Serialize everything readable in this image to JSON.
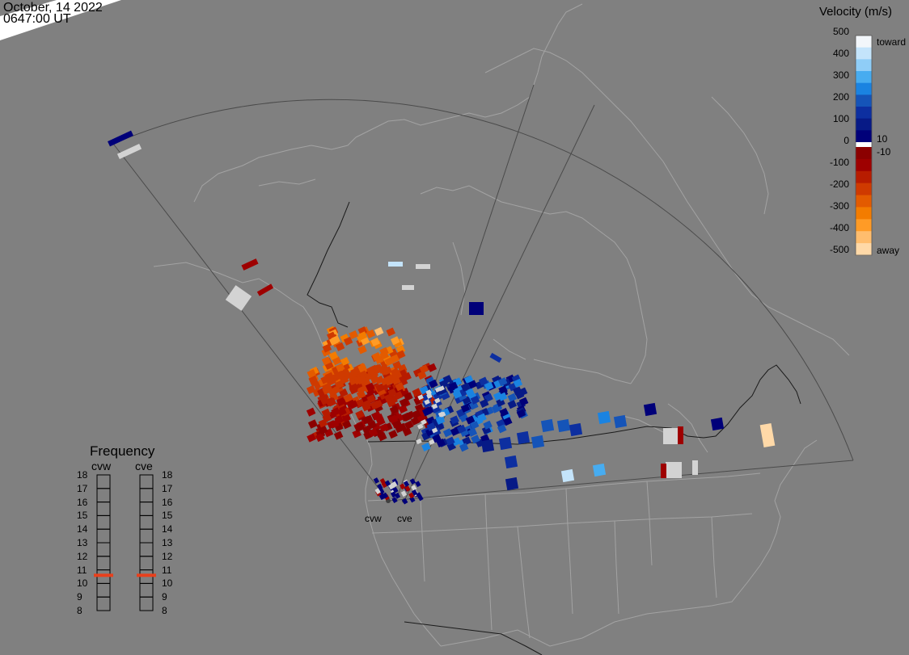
{
  "header": {
    "date": "October, 14 2022",
    "time": "0647:00 UT"
  },
  "colorbar": {
    "title": "Velocity (m/s)",
    "ticks": [
      "500",
      "400",
      "300",
      "200",
      "100",
      "0",
      "-100",
      "-200",
      "-300",
      "-400",
      "-500"
    ],
    "toward_label": "toward",
    "away_label": "away",
    "pos_threshold": "10",
    "neg_threshold": "-10",
    "colors": [
      "#f2f6fa",
      "#c4e4fb",
      "#8fcdf7",
      "#47acf0",
      "#1a83e1",
      "#1554b8",
      "#0d2fa0",
      "#071a86",
      "#000079",
      "#ffffff",
      "#8b0000",
      "#9e0000",
      "#b71c00",
      "#cf3a00",
      "#e35b00",
      "#f37c00",
      "#ff9b26",
      "#ffbd6e",
      "#ffd9a8"
    ]
  },
  "frequency": {
    "title": "Frequency",
    "radars": [
      "cvw",
      "cve"
    ],
    "scale": [
      "18",
      "17",
      "16",
      "15",
      "14",
      "13",
      "12",
      "11",
      "10",
      "9",
      "8"
    ],
    "cvw_mhz": 10.6,
    "cve_mhz": 10.6,
    "marker_color": "#e8401c"
  },
  "radars": {
    "labels": [
      "cvw",
      "cve"
    ]
  }
}
